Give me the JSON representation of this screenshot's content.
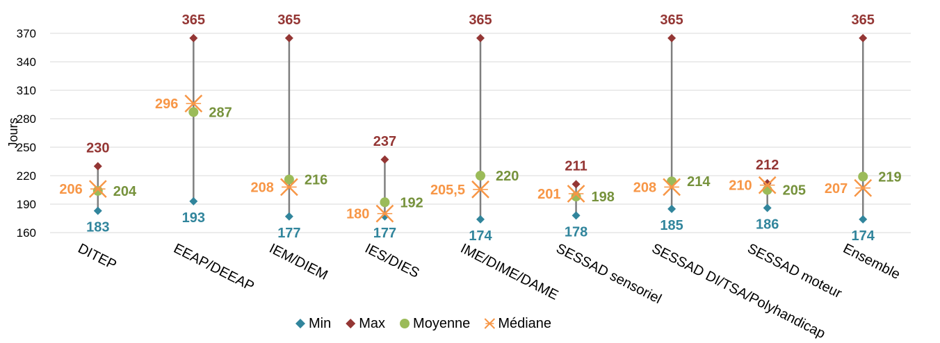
{
  "chart_data": {
    "type": "scatter",
    "ylabel": "Jours",
    "ylim": [
      160,
      370
    ],
    "yticks": [
      160,
      190,
      220,
      250,
      280,
      310,
      340,
      370
    ],
    "grid": true,
    "legend_position": "bottom",
    "categories": [
      "DITEP",
      "EEAP/DEEAP",
      "IEM/DIEM",
      "IES/DIES",
      "IME/DIME/DAME",
      "SESSAD sensoriel",
      "SESSAD DI/TSA/Polyhandicap",
      "SESSAD moteur",
      "Ensemble"
    ],
    "series": [
      {
        "name": "Min",
        "color": "#31859C",
        "marker": "diamond",
        "values": [
          183,
          193,
          177,
          177,
          174,
          178,
          185,
          186,
          174
        ],
        "labels": [
          "183",
          "193",
          "177",
          "177",
          "174",
          "178",
          "185",
          "186",
          "174"
        ]
      },
      {
        "name": "Max",
        "color": "#943634",
        "marker": "diamond",
        "values": [
          230,
          365,
          365,
          237,
          365,
          211,
          365,
          212,
          365
        ],
        "labels": [
          "230",
          "365",
          "365",
          "237",
          "365",
          "211",
          "365",
          "212",
          "365"
        ]
      },
      {
        "name": "Moyenne",
        "color": "#9BBB59",
        "label_color": "#76923C",
        "marker": "circle",
        "values": [
          204,
          287,
          216,
          192,
          220,
          198,
          214,
          205,
          219
        ],
        "labels": [
          "204",
          "287",
          "216",
          "192",
          "220",
          "198",
          "214",
          "205",
          "219"
        ]
      },
      {
        "name": "Médiane",
        "color": "#F79646",
        "label_color": "#F79646",
        "marker": "star",
        "values": [
          206,
          296,
          208,
          180,
          205.5,
          201,
          208,
          210,
          207
        ],
        "labels": [
          "206",
          "296",
          "208",
          "180",
          "205,5",
          "201",
          "208",
          "210",
          "207"
        ]
      }
    ]
  }
}
